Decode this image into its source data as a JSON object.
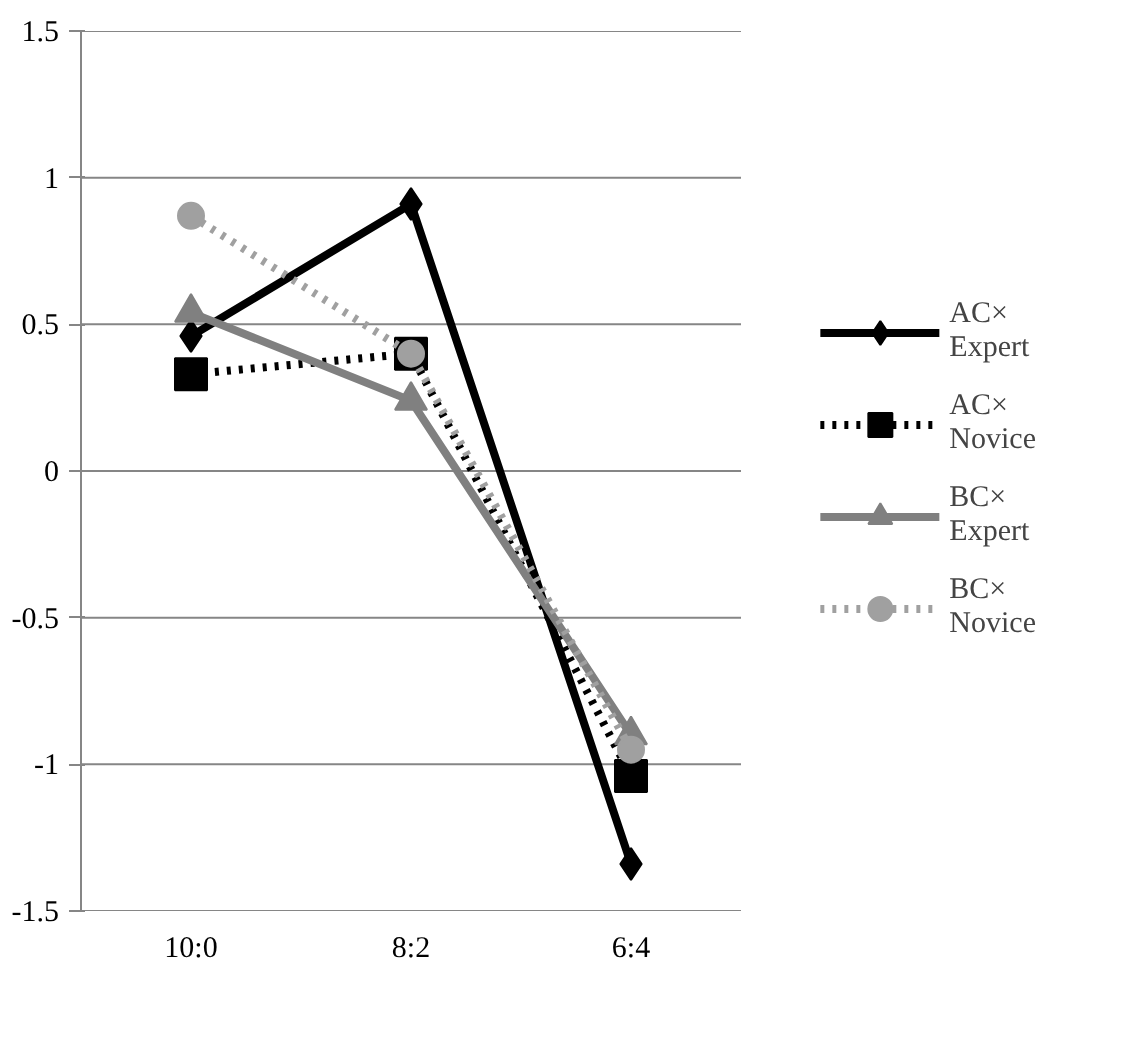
{
  "chart_data": {
    "type": "line",
    "categories": [
      "10:0",
      "8:2",
      "6:4"
    ],
    "ylim": [
      -1.5,
      1.5
    ],
    "yticks": [
      {
        "value": -1.5,
        "label": "-1.5"
      },
      {
        "value": -1,
        "label": "-1"
      },
      {
        "value": -0.5,
        "label": "-0.5"
      },
      {
        "value": 0,
        "label": "0"
      },
      {
        "value": 0.5,
        "label": "0.5"
      },
      {
        "value": 1,
        "label": "1"
      },
      {
        "value": 1.5,
        "label": "1.5"
      }
    ],
    "grid": "y",
    "legend": "right",
    "series": [
      {
        "name": "AC×\nExpert",
        "color": "#000000",
        "marker": "diamond",
        "line_style": "solid",
        "values": [
          0.46,
          0.91,
          -1.34
        ]
      },
      {
        "name": "AC×\nNovice",
        "color": "#000000",
        "marker": "square",
        "line_style": "dotted",
        "values": [
          0.33,
          0.4,
          -1.04
        ]
      },
      {
        "name": "BC×\nExpert",
        "color": "#808080",
        "marker": "triangle",
        "line_style": "solid",
        "values": [
          0.54,
          0.24,
          -0.9
        ]
      },
      {
        "name": "BC×\nNovice",
        "color": "#a0a0a0",
        "marker": "circle",
        "line_style": "dotted",
        "values": [
          0.87,
          0.4,
          -0.95
        ]
      }
    ]
  }
}
